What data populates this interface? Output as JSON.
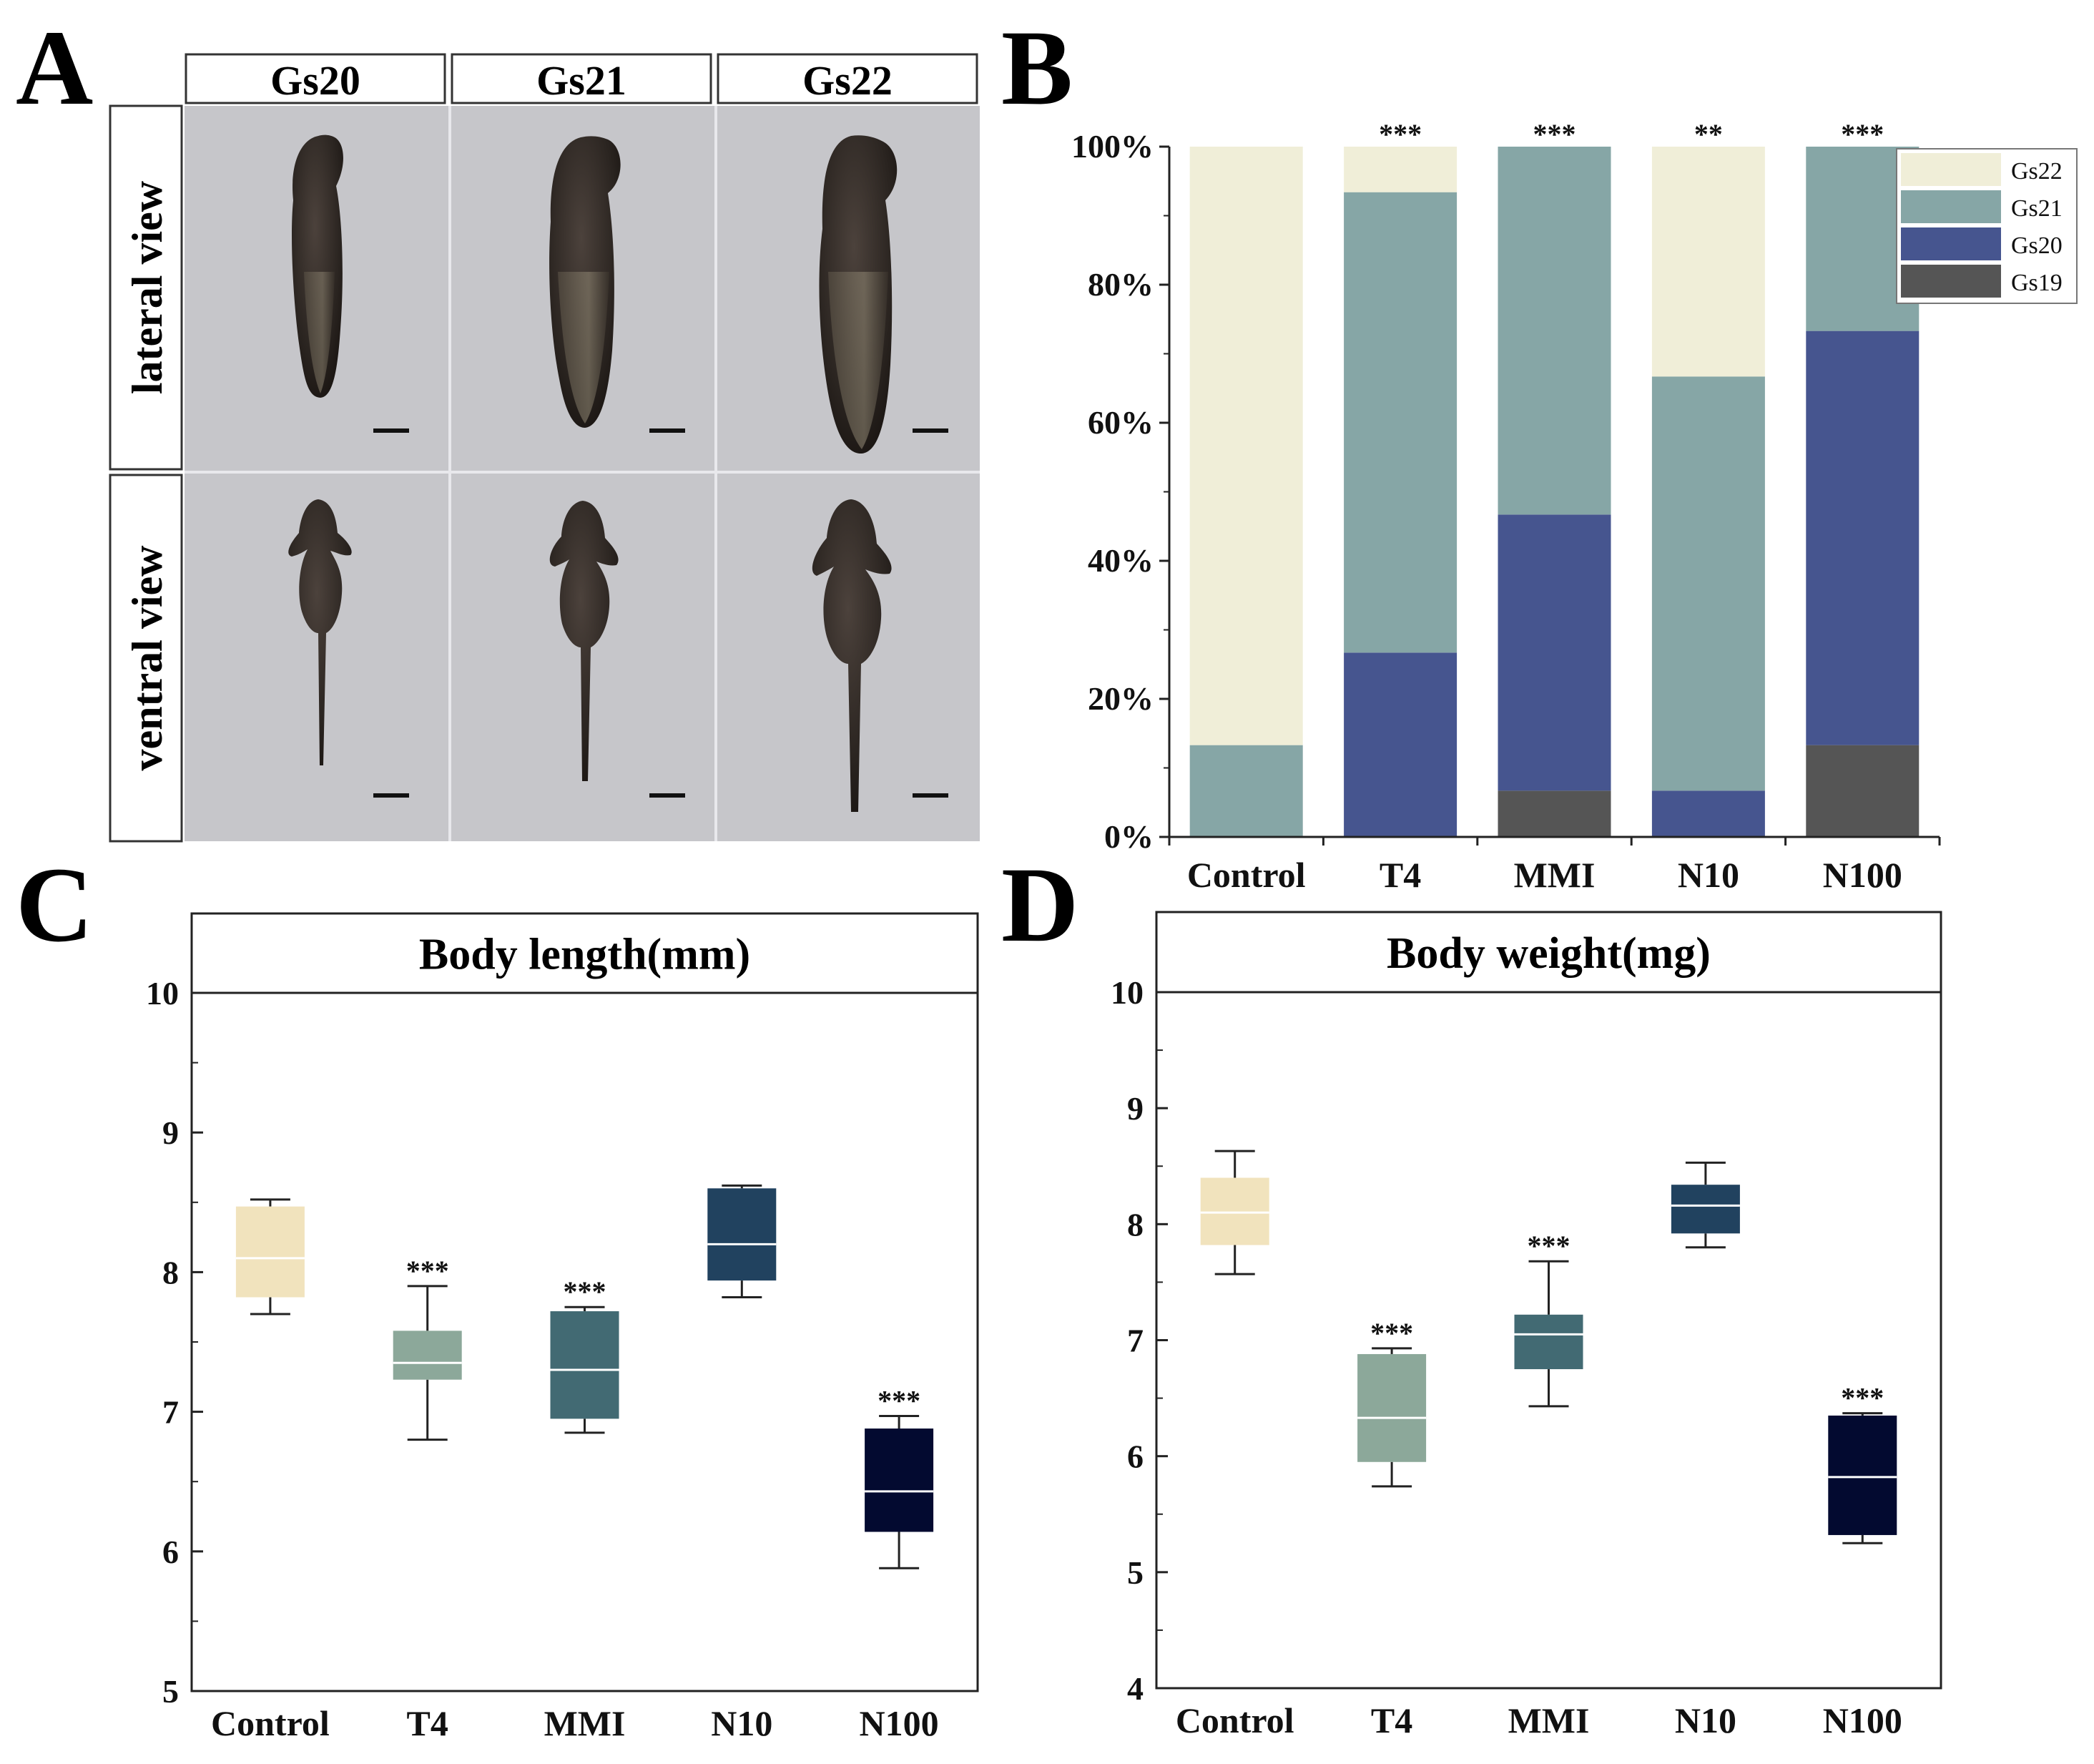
{
  "panel_labels": [
    "A",
    "B",
    "C",
    "D"
  ],
  "panel_a": {
    "columns": [
      "Gs20",
      "Gs21",
      "Gs22"
    ],
    "rows": [
      "lateral view",
      "ventral view"
    ]
  },
  "chart_data": [
    {
      "id": "B",
      "type": "bar",
      "stacked": true,
      "percent": true,
      "categories": [
        "Control",
        "T4",
        "MMI",
        "N10",
        "N100"
      ],
      "series": [
        {
          "name": "Gs19",
          "color": "#555555",
          "values": [
            0,
            0,
            6.7,
            0,
            13.3
          ]
        },
        {
          "name": "Gs20",
          "color": "#46558f",
          "values": [
            0,
            26.7,
            40,
            6.7,
            60
          ]
        },
        {
          "name": "Gs21",
          "color": "#86a6a6",
          "values": [
            13.3,
            66.7,
            53.3,
            60,
            26.7
          ]
        },
        {
          "name": "Gs22",
          "color": "#f0eed8",
          "values": [
            86.7,
            6.6,
            0,
            33.3,
            0
          ]
        }
      ],
      "legend_order": [
        "Gs22",
        "Gs21",
        "Gs20",
        "Gs19"
      ],
      "significance": [
        "",
        "***",
        "***",
        "**",
        "***"
      ],
      "yticks": [
        "0%",
        "20%",
        "40%",
        "60%",
        "80%",
        "100%"
      ],
      "ylim": [
        0,
        100
      ],
      "legend": "top-right"
    },
    {
      "id": "C",
      "type": "box",
      "title": "Body length(mm)",
      "categories": [
        "Control",
        "T4",
        "MMI",
        "N10",
        "N100"
      ],
      "colors": [
        "#f1e3bd",
        "#8ca89a",
        "#426a73",
        "#21425f",
        "#030a30"
      ],
      "boxes": [
        {
          "whislo": 7.7,
          "q1": 7.82,
          "med": 8.1,
          "q3": 8.47,
          "whishi": 8.52
        },
        {
          "whislo": 6.8,
          "q1": 7.23,
          "med": 7.35,
          "q3": 7.58,
          "whishi": 7.9
        },
        {
          "whislo": 6.85,
          "q1": 6.95,
          "med": 7.3,
          "q3": 7.72,
          "whishi": 7.75
        },
        {
          "whislo": 7.82,
          "q1": 7.94,
          "med": 8.2,
          "q3": 8.6,
          "whishi": 8.62
        },
        {
          "whislo": 5.88,
          "q1": 6.14,
          "med": 6.43,
          "q3": 6.88,
          "whishi": 6.97
        }
      ],
      "significance": [
        "",
        "***",
        "***",
        "",
        "***"
      ],
      "ylim": [
        5,
        10
      ],
      "yticks": [
        5,
        6,
        7,
        8,
        9,
        10
      ],
      "ytick_labels": [
        "5",
        "6",
        "7",
        "8",
        "9",
        "10"
      ]
    },
    {
      "id": "D",
      "type": "box",
      "title": "Body weight(mg)",
      "categories": [
        "Control",
        "T4",
        "MMI",
        "N10",
        "N100"
      ],
      "colors": [
        "#f1e3bd",
        "#8ca89a",
        "#426a73",
        "#21425f",
        "#030a30"
      ],
      "boxes": [
        {
          "whislo": 7.57,
          "q1": 7.82,
          "med": 8.1,
          "q3": 8.4,
          "whishi": 8.63
        },
        {
          "whislo": 5.74,
          "q1": 5.95,
          "med": 6.33,
          "q3": 6.88,
          "whishi": 6.93
        },
        {
          "whislo": 6.43,
          "q1": 6.75,
          "med": 7.05,
          "q3": 7.22,
          "whishi": 7.68
        },
        {
          "whislo": 7.8,
          "q1": 7.92,
          "med": 8.16,
          "q3": 8.34,
          "whishi": 8.53
        },
        {
          "whislo": 5.25,
          "q1": 5.32,
          "med": 5.82,
          "q3": 6.35,
          "whishi": 6.37
        }
      ],
      "significance": [
        "",
        "***",
        "***",
        "",
        "***"
      ],
      "ylim": [
        4,
        10
      ],
      "yticks": [
        4,
        5,
        6,
        7,
        8,
        9,
        10
      ],
      "ytick_labels": [
        "4",
        "5",
        "6",
        "7",
        "8",
        "9",
        "10"
      ]
    }
  ]
}
